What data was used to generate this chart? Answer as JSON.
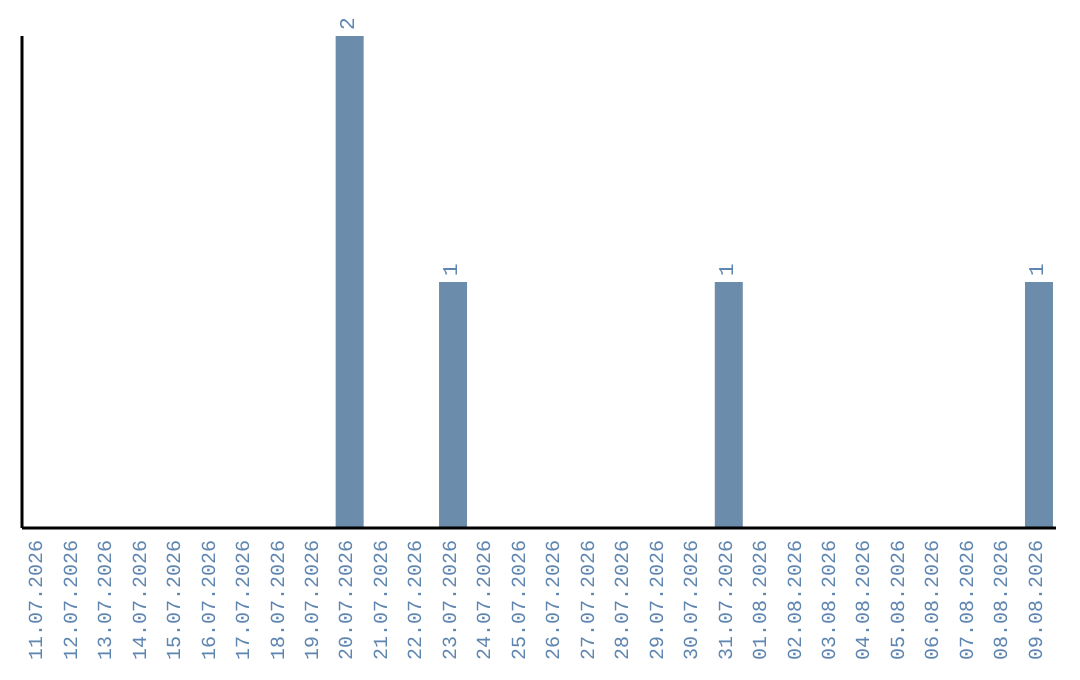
{
  "chart_data": {
    "type": "bar",
    "categories": [
      "11.07.2026",
      "12.07.2026",
      "13.07.2026",
      "14.07.2026",
      "15.07.2026",
      "16.07.2026",
      "17.07.2026",
      "18.07.2026",
      "19.07.2026",
      "20.07.2026",
      "21.07.2026",
      "22.07.2026",
      "23.07.2026",
      "24.07.2026",
      "25.07.2026",
      "26.07.2026",
      "27.07.2026",
      "28.07.2026",
      "29.07.2026",
      "30.07.2026",
      "31.07.2026",
      "01.08.2026",
      "02.08.2026",
      "03.08.2026",
      "04.08.2026",
      "05.08.2026",
      "06.08.2026",
      "07.08.2026",
      "08.08.2026",
      "09.08.2026"
    ],
    "values": [
      0,
      0,
      0,
      0,
      0,
      0,
      0,
      0,
      0,
      2,
      0,
      0,
      1,
      0,
      0,
      0,
      0,
      0,
      0,
      0,
      1,
      0,
      0,
      0,
      0,
      0,
      0,
      0,
      0,
      1
    ],
    "value_labels": [
      null,
      null,
      null,
      null,
      null,
      null,
      null,
      null,
      null,
      "2",
      null,
      null,
      "1",
      null,
      null,
      null,
      null,
      null,
      null,
      null,
      "1",
      null,
      null,
      null,
      null,
      null,
      null,
      null,
      null,
      "1"
    ],
    "color": "#6b8cab",
    "tick_labels": "x"
  }
}
